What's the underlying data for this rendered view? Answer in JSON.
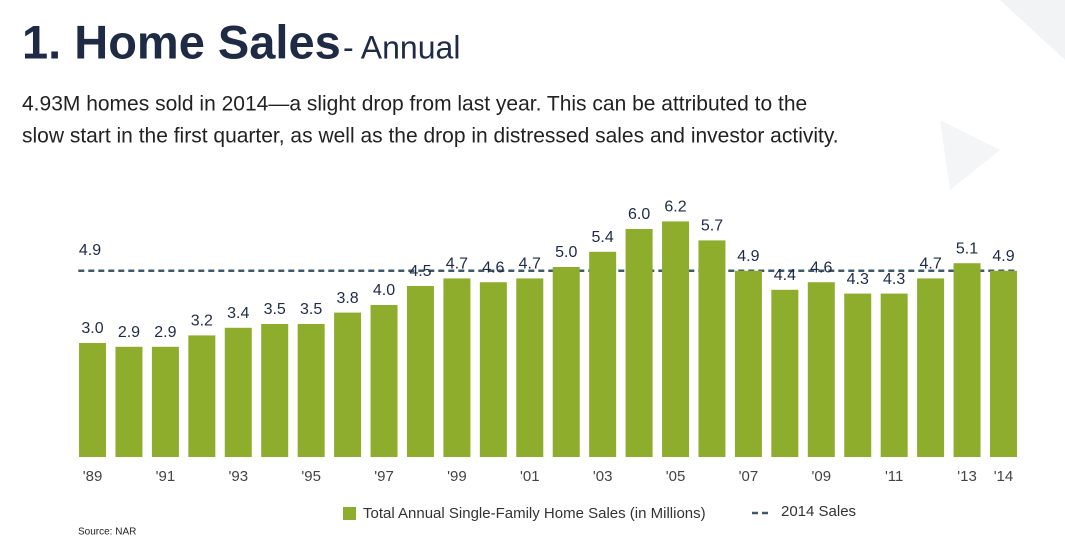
{
  "chart_data": {
    "type": "bar",
    "title": "1. Home Sales",
    "subtitle": "- Annual",
    "description": [
      "4.93M homes sold in 2014—a slight drop from last year. This can be attributed to the",
      "slow start in the first quarter, as well as the drop in distressed sales and investor activity."
    ],
    "categories": [
      "'89",
      null,
      "'91",
      null,
      "'93",
      null,
      "'95",
      null,
      "'97",
      null,
      "'99",
      null,
      "'01",
      null,
      "'03",
      null,
      "'05",
      null,
      "'07",
      null,
      "'09",
      null,
      "'11",
      null,
      "'13",
      "'14"
    ],
    "series": [
      {
        "name": "Total Annual Single-Family Home Sales (in Millions)",
        "color": "#8fad2c",
        "values": [
          3.0,
          2.9,
          2.9,
          3.2,
          3.4,
          3.5,
          3.5,
          3.8,
          4.0,
          4.5,
          4.7,
          4.6,
          4.7,
          5.0,
          5.4,
          6.0,
          6.2,
          5.7,
          4.9,
          4.4,
          4.6,
          4.3,
          4.3,
          4.7,
          5.1,
          4.9
        ],
        "value_labels": [
          "3.0",
          "2.9",
          "2.9",
          "3.2",
          "3.4",
          "3.5",
          "3.5",
          "3.8",
          "4.0",
          "4.5",
          "4.7",
          "4.6",
          "4.7",
          "5.0",
          "5.4",
          "6.0",
          "6.2",
          "5.7",
          "4.9",
          "4.4",
          "4.6",
          "4.3",
          "4.3",
          "4.7",
          "5.1",
          "4.9"
        ]
      }
    ],
    "reference": {
      "name": "2014 Sales",
      "value": 4.9,
      "color": "#3f5b6b"
    },
    "ylim": [
      0,
      7
    ],
    "source": "Source: NAR"
  }
}
